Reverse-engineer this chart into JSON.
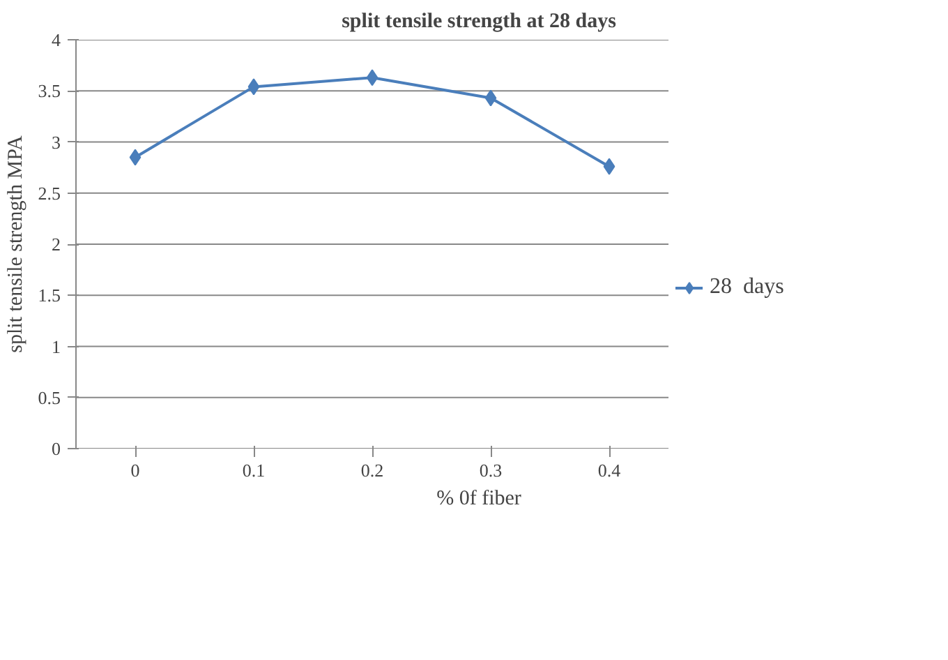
{
  "chart_data": {
    "type": "line",
    "title": "split tensile strength at 28 days",
    "xlabel": "% 0f fiber",
    "ylabel": "split tensile strength MPA",
    "categories": [
      "0",
      "0.1",
      "0.2",
      "0.3",
      "0.4"
    ],
    "series": [
      {
        "name": "28  days",
        "color": "#4a7ebb",
        "values": [
          2.85,
          3.54,
          3.63,
          3.43,
          2.76
        ]
      }
    ],
    "ylim": [
      0,
      4
    ],
    "yticks": [
      0,
      0.5,
      1,
      1.5,
      2,
      2.5,
      3,
      3.5,
      4
    ],
    "grid": "y",
    "legend": "right",
    "marker": "diamond",
    "line_style": "solid"
  }
}
